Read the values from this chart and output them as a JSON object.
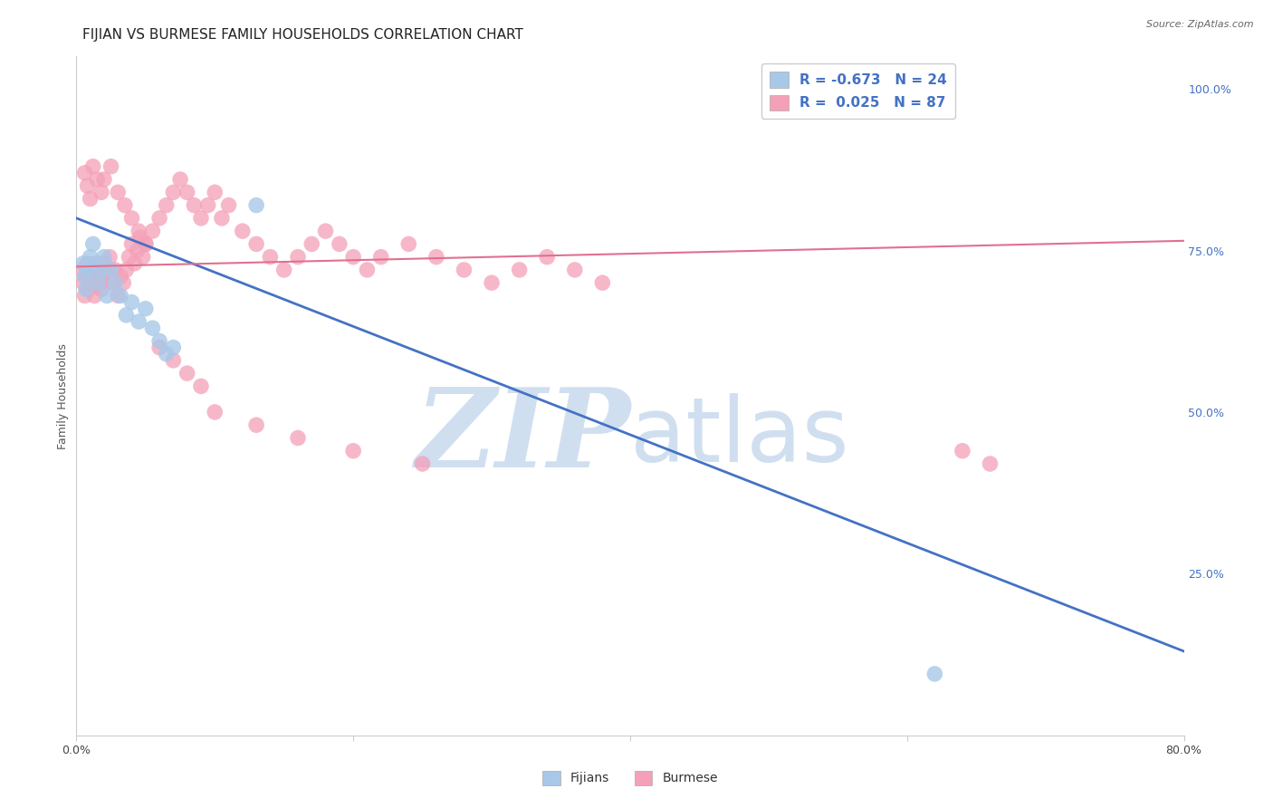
{
  "title": "FIJIAN VS BURMESE FAMILY HOUSEHOLDS CORRELATION CHART",
  "source": "Source: ZipAtlas.com",
  "ylabel": "Family Households",
  "xlim": [
    0.0,
    0.8
  ],
  "ylim": [
    0.0,
    1.05
  ],
  "xtick_labels": [
    "0.0%",
    "",
    "",
    "",
    "80.0%"
  ],
  "xtick_values": [
    0.0,
    0.2,
    0.4,
    0.6,
    0.8
  ],
  "ytick_labels": [
    "25.0%",
    "50.0%",
    "75.0%",
    "100.0%"
  ],
  "ytick_values": [
    0.25,
    0.5,
    0.75,
    1.0
  ],
  "legend_fijians_R": "-0.673",
  "legend_fijians_N": "24",
  "legend_burmese_R": "0.025",
  "legend_burmese_N": "87",
  "fijian_color": "#a8c8e8",
  "burmese_color": "#f4a0b8",
  "fijian_line_color": "#4472c4",
  "burmese_line_color": "#e07090",
  "watermark_color": "#d0dff0",
  "grid_color": "#d8d8d8",
  "background_color": "#ffffff",
  "title_fontsize": 11,
  "label_fontsize": 9,
  "tick_fontsize": 9,
  "fijian_trend_x": [
    0.0,
    0.8
  ],
  "fijian_trend_y": [
    0.8,
    0.13
  ],
  "burmese_trend_x": [
    0.0,
    0.8
  ],
  "burmese_trend_y": [
    0.725,
    0.765
  ],
  "fijians_x": [
    0.005,
    0.006,
    0.007,
    0.009,
    0.01,
    0.012,
    0.014,
    0.016,
    0.018,
    0.02,
    0.022,
    0.025,
    0.028,
    0.032,
    0.036,
    0.04,
    0.045,
    0.05,
    0.055,
    0.06,
    0.065,
    0.07,
    0.13,
    0.62
  ],
  "fijians_y": [
    0.73,
    0.71,
    0.69,
    0.72,
    0.74,
    0.76,
    0.73,
    0.7,
    0.72,
    0.74,
    0.68,
    0.72,
    0.7,
    0.68,
    0.65,
    0.67,
    0.64,
    0.66,
    0.63,
    0.61,
    0.59,
    0.6,
    0.82,
    0.095
  ],
  "burmese_x": [
    0.004,
    0.005,
    0.006,
    0.007,
    0.008,
    0.009,
    0.01,
    0.011,
    0.012,
    0.013,
    0.014,
    0.015,
    0.016,
    0.017,
    0.018,
    0.019,
    0.02,
    0.022,
    0.024,
    0.026,
    0.028,
    0.03,
    0.032,
    0.034,
    0.036,
    0.038,
    0.04,
    0.042,
    0.044,
    0.046,
    0.048,
    0.05,
    0.055,
    0.06,
    0.065,
    0.07,
    0.075,
    0.08,
    0.085,
    0.09,
    0.095,
    0.1,
    0.105,
    0.11,
    0.12,
    0.13,
    0.14,
    0.15,
    0.16,
    0.17,
    0.18,
    0.19,
    0.2,
    0.21,
    0.22,
    0.24,
    0.26,
    0.28,
    0.3,
    0.32,
    0.34,
    0.36,
    0.38,
    0.006,
    0.008,
    0.01,
    0.012,
    0.015,
    0.018,
    0.02,
    0.025,
    0.03,
    0.035,
    0.04,
    0.045,
    0.05,
    0.06,
    0.07,
    0.08,
    0.09,
    0.1,
    0.13,
    0.16,
    0.2,
    0.25,
    0.64,
    0.66
  ],
  "burmese_y": [
    0.72,
    0.7,
    0.68,
    0.71,
    0.73,
    0.69,
    0.71,
    0.7,
    0.72,
    0.68,
    0.71,
    0.73,
    0.72,
    0.7,
    0.69,
    0.71,
    0.73,
    0.72,
    0.74,
    0.7,
    0.72,
    0.68,
    0.71,
    0.7,
    0.72,
    0.74,
    0.76,
    0.73,
    0.75,
    0.77,
    0.74,
    0.76,
    0.78,
    0.8,
    0.82,
    0.84,
    0.86,
    0.84,
    0.82,
    0.8,
    0.82,
    0.84,
    0.8,
    0.82,
    0.78,
    0.76,
    0.74,
    0.72,
    0.74,
    0.76,
    0.78,
    0.76,
    0.74,
    0.72,
    0.74,
    0.76,
    0.74,
    0.72,
    0.7,
    0.72,
    0.74,
    0.72,
    0.7,
    0.87,
    0.85,
    0.83,
    0.88,
    0.86,
    0.84,
    0.86,
    0.88,
    0.84,
    0.82,
    0.8,
    0.78,
    0.76,
    0.6,
    0.58,
    0.56,
    0.54,
    0.5,
    0.48,
    0.46,
    0.44,
    0.42,
    0.44,
    0.42
  ]
}
